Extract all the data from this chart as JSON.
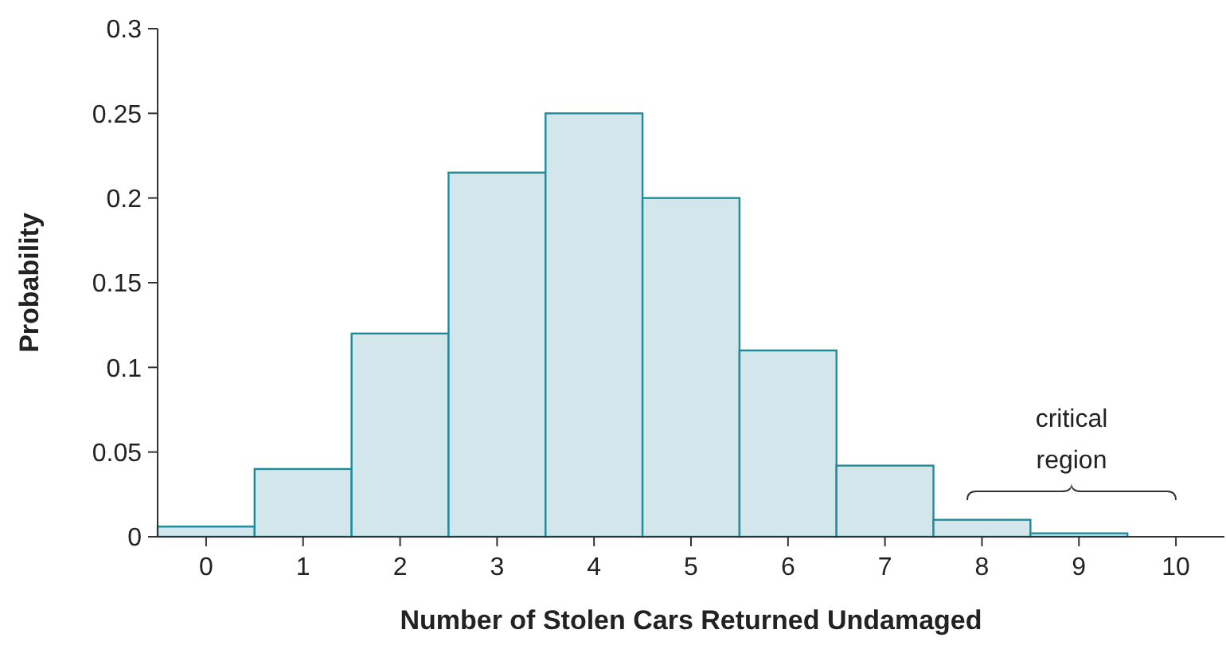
{
  "chart_data": {
    "type": "bar",
    "xlabel": "Number of Stolen Cars Returned Undamaged",
    "ylabel": "Probability",
    "categories": [
      "0",
      "1",
      "2",
      "3",
      "4",
      "5",
      "6",
      "7",
      "8",
      "9",
      "10"
    ],
    "values": [
      0.006,
      0.04,
      0.12,
      0.215,
      0.25,
      0.2,
      0.11,
      0.042,
      0.01,
      0.002,
      0
    ],
    "color": "#d3e6ec",
    "ylim": [
      0,
      0.3
    ],
    "yticks": [
      0,
      0.05,
      0.1,
      0.15,
      0.2,
      0.25,
      0.3
    ],
    "grid": false,
    "annotations": [
      "critical region"
    ]
  }
}
